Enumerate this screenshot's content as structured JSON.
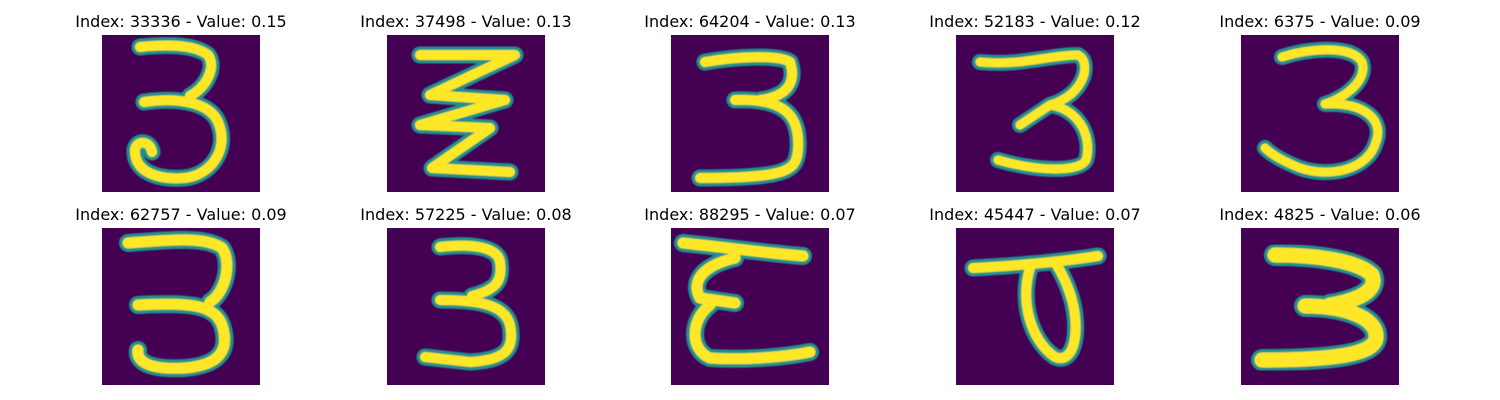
{
  "figure": {
    "panels": [
      {
        "title": "Index: 33336 - Value: 0.15",
        "depicts": "handwritten digit 3, thin loop stroke",
        "image_colors": {
          "background": "#440154",
          "stroke": "#fde725",
          "edge": "#21908d"
        }
      },
      {
        "title": "Index: 37498 - Value: 0.13",
        "depicts": "zigzag shaped 3",
        "image_colors": {
          "background": "#440154",
          "stroke": "#fde725",
          "edge": "#21908d"
        }
      },
      {
        "title": "Index: 64204 - Value: 0.13",
        "depicts": "handwritten digit 3 with flat base",
        "image_colors": {
          "background": "#440154",
          "stroke": "#fde725",
          "edge": "#21908d"
        }
      },
      {
        "title": "Index: 52183 - Value: 0.12",
        "depicts": "handwritten digit 3, compact",
        "image_colors": {
          "background": "#440154",
          "stroke": "#fde725",
          "edge": "#21908d"
        }
      },
      {
        "title": "Index: 6375 - Value: 0.09",
        "depicts": "handwritten digit 3, slanted",
        "image_colors": {
          "background": "#440154",
          "stroke": "#fde725",
          "edge": "#21908d"
        }
      },
      {
        "title": "Index: 62757 - Value: 0.09",
        "depicts": "handwritten digit 3, tall",
        "image_colors": {
          "background": "#440154",
          "stroke": "#fde725",
          "edge": "#21908d"
        }
      },
      {
        "title": "Index: 57225 - Value: 0.08",
        "depicts": "handwritten digit 3, narrow",
        "image_colors": {
          "background": "#440154",
          "stroke": "#fde725",
          "edge": "#21908d"
        }
      },
      {
        "title": "Index: 88295 - Value: 0.07",
        "depicts": "epsilon-like 3 with top bar",
        "image_colors": {
          "background": "#440154",
          "stroke": "#fde725",
          "edge": "#21908d"
        }
      },
      {
        "title": "Index: 45447 - Value: 0.07",
        "depicts": "loop shape with top bar",
        "image_colors": {
          "background": "#440154",
          "stroke": "#fde725",
          "edge": "#21908d"
        }
      },
      {
        "title": "Index: 4825 - Value: 0.06",
        "depicts": "bold blocky 3",
        "image_colors": {
          "background": "#440154",
          "stroke": "#fde725",
          "edge": "#21908d"
        }
      }
    ]
  }
}
